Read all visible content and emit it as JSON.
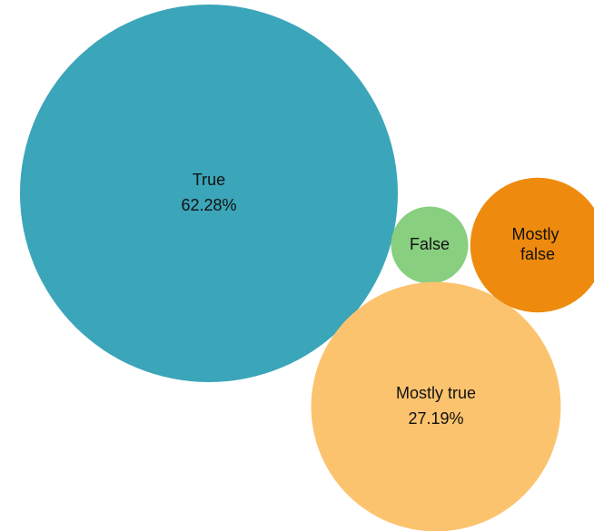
{
  "chart_data": {
    "type": "bubble",
    "categories": [
      "True",
      "False",
      "Mostly true",
      "Mostly false"
    ],
    "values": [
      62.28,
      2.6,
      27.19,
      7.93
    ],
    "value_labels": [
      "62.28%",
      null,
      "27.19%",
      null
    ],
    "colors": [
      "#3ba5b9",
      "#88cf80",
      "#fcc36e",
      "#ee8a0d"
    ]
  }
}
